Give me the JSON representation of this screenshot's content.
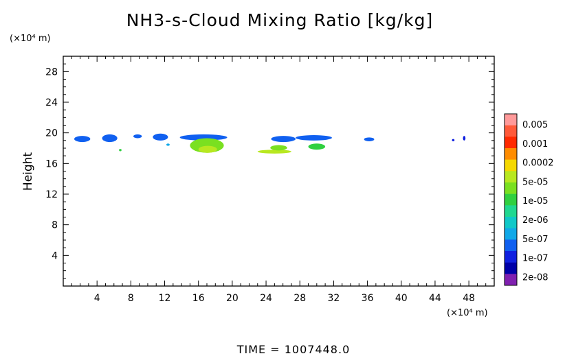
{
  "chart_data": {
    "type": "heatmap",
    "title": "NH3-s-Cloud Mixing Ratio [kg/kg]",
    "y_unit": "(×10⁴ m)",
    "x_unit": "(×10⁴ m)",
    "ylabel": "Height",
    "xlabel": "",
    "footer": "TIME = 1007448.0",
    "xlim": [
      0,
      51
    ],
    "ylim": [
      0,
      30
    ],
    "x_ticks": [
      4,
      8,
      12,
      16,
      20,
      24,
      28,
      32,
      36,
      40,
      44,
      48
    ],
    "y_ticks": [
      4,
      8,
      12,
      16,
      20,
      24,
      28
    ],
    "colorbar": {
      "labels": [
        "0.005",
        "0.001",
        "0.0002",
        "5e-05",
        "1e-05",
        "2e-06",
        "5e-07",
        "1e-07",
        "2e-08"
      ],
      "colors": [
        "#ff9a9a",
        "#ff5a3a",
        "#ff2a00",
        "#ff8c00",
        "#f5d800",
        "#b8e820",
        "#7ae020",
        "#30d040",
        "#20d890",
        "#10c8c8",
        "#10a8e8",
        "#1060f0",
        "#1020e0",
        "#0000a8",
        "#8020b0"
      ]
    },
    "regions": [
      {
        "x": [
          1.3,
          3.2
        ],
        "y": [
          18.8,
          19.6
        ],
        "level": 11
      },
      {
        "x": [
          4.6,
          6.4
        ],
        "y": [
          18.8,
          19.8
        ],
        "level": 11
      },
      {
        "x": [
          6.6,
          6.9
        ],
        "y": [
          17.6,
          17.9
        ],
        "level": 7
      },
      {
        "x": [
          8.3,
          9.3
        ],
        "y": [
          19.3,
          19.8
        ],
        "level": 11
      },
      {
        "x": [
          10.6,
          12.4
        ],
        "y": [
          19.0,
          19.9
        ],
        "level": 11
      },
      {
        "x": [
          12.2,
          12.6
        ],
        "y": [
          18.3,
          18.6
        ],
        "level": 10
      },
      {
        "x": [
          13.8,
          19.4
        ],
        "y": [
          19.0,
          19.8
        ],
        "level": 11
      },
      {
        "x": [
          15.0,
          19.0
        ],
        "y": [
          17.4,
          19.3
        ],
        "level": 6
      },
      {
        "x": [
          16.0,
          18.2
        ],
        "y": [
          17.4,
          18.3
        ],
        "level": 5
      },
      {
        "x": [
          23.0,
          27.0
        ],
        "y": [
          17.3,
          17.8
        ],
        "level": 5
      },
      {
        "x": [
          24.5,
          26.5
        ],
        "y": [
          17.7,
          18.4
        ],
        "level": 6
      },
      {
        "x": [
          24.6,
          27.5
        ],
        "y": [
          18.8,
          19.6
        ],
        "level": 11
      },
      {
        "x": [
          27.5,
          31.8
        ],
        "y": [
          19.0,
          19.7
        ],
        "level": 11
      },
      {
        "x": [
          29.0,
          31.0
        ],
        "y": [
          17.8,
          18.6
        ],
        "level": 7
      },
      {
        "x": [
          35.6,
          36.8
        ],
        "y": [
          18.9,
          19.4
        ],
        "level": 11
      },
      {
        "x": [
          46.0,
          46.3
        ],
        "y": [
          18.9,
          19.2
        ],
        "level": 12
      },
      {
        "x": [
          47.3,
          47.6
        ],
        "y": [
          19.0,
          19.6
        ],
        "level": 12
      }
    ]
  }
}
